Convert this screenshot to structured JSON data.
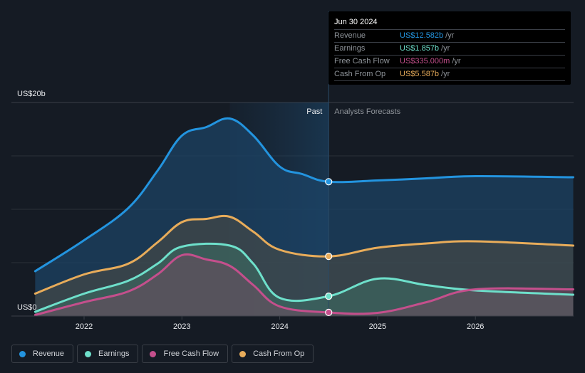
{
  "tooltip": {
    "date": "Jun 30 2024",
    "rows": [
      {
        "label": "Revenue",
        "value": "US$12.582b",
        "unit": "/yr",
        "color": "#2394df"
      },
      {
        "label": "Earnings",
        "value": "US$1.857b",
        "unit": "/yr",
        "color": "#6ee0cb"
      },
      {
        "label": "Free Cash Flow",
        "value": "US$335.000m",
        "unit": "/yr",
        "color": "#c44f8c"
      },
      {
        "label": "Cash From Op",
        "value": "US$5.587b",
        "unit": "/yr",
        "color": "#e8ac5a"
      }
    ]
  },
  "chart_data": {
    "type": "area",
    "title": "",
    "xlabel": "",
    "ylabel": "",
    "y_unit": "US$ billions",
    "ylim": [
      0,
      20
    ],
    "y_tick_labels": [
      "US$0",
      "US$20b"
    ],
    "x_tick_labels": [
      "2022",
      "2023",
      "2024",
      "2025",
      "2026"
    ],
    "xlim": [
      2021.5,
      2026.99
    ],
    "grid": true,
    "past_label": "Past",
    "forecast_label": "Analysts Forecasts",
    "divider_x": 2024.5,
    "legend_position": "bottom-left",
    "series": [
      {
        "name": "Revenue",
        "color": "#2394df",
        "x": [
          2021.5,
          2022.0,
          2022.45,
          2022.75,
          2023.0,
          2023.25,
          2023.49,
          2023.73,
          2024.0,
          2024.23,
          2024.5,
          2025.0,
          2025.5,
          2026.0,
          2027.0
        ],
        "values": [
          4.2,
          7.1,
          10.1,
          13.6,
          16.9,
          17.7,
          18.5,
          16.9,
          14.0,
          13.3,
          12.58,
          12.7,
          12.9,
          13.1,
          13.0
        ]
      },
      {
        "name": "Earnings",
        "color": "#6ee0cb",
        "x": [
          2021.5,
          2022.0,
          2022.45,
          2022.75,
          2023.0,
          2023.49,
          2023.73,
          2024.0,
          2024.5,
          2025.0,
          2025.5,
          2026.0,
          2027.0
        ],
        "values": [
          0.4,
          2.1,
          3.3,
          4.9,
          6.5,
          6.6,
          4.9,
          1.7,
          1.86,
          3.5,
          2.9,
          2.4,
          2.0
        ]
      },
      {
        "name": "Free Cash Flow",
        "color": "#c44f8c",
        "x": [
          2021.5,
          2022.0,
          2022.45,
          2022.75,
          2023.0,
          2023.25,
          2023.49,
          2023.73,
          2024.0,
          2024.5,
          2025.0,
          2025.5,
          2026.0,
          2027.0
        ],
        "values": [
          0.1,
          1.3,
          2.3,
          3.9,
          5.7,
          5.3,
          4.7,
          2.9,
          0.9,
          0.34,
          0.3,
          1.3,
          2.5,
          2.5
        ]
      },
      {
        "name": "Cash From Op",
        "color": "#e8ac5a",
        "x": [
          2021.5,
          2022.0,
          2022.45,
          2022.75,
          2023.0,
          2023.25,
          2023.49,
          2023.73,
          2024.0,
          2024.5,
          2025.0,
          2025.5,
          2026.0,
          2027.0
        ],
        "values": [
          2.1,
          3.9,
          4.9,
          6.9,
          8.8,
          9.1,
          9.3,
          7.9,
          6.2,
          5.59,
          6.4,
          6.8,
          7.0,
          6.6
        ]
      }
    ]
  },
  "legend": [
    {
      "label": "Revenue",
      "color": "#2394df"
    },
    {
      "label": "Earnings",
      "color": "#6ee0cb"
    },
    {
      "label": "Free Cash Flow",
      "color": "#c44f8c"
    },
    {
      "label": "Cash From Op",
      "color": "#e8ac5a"
    }
  ]
}
